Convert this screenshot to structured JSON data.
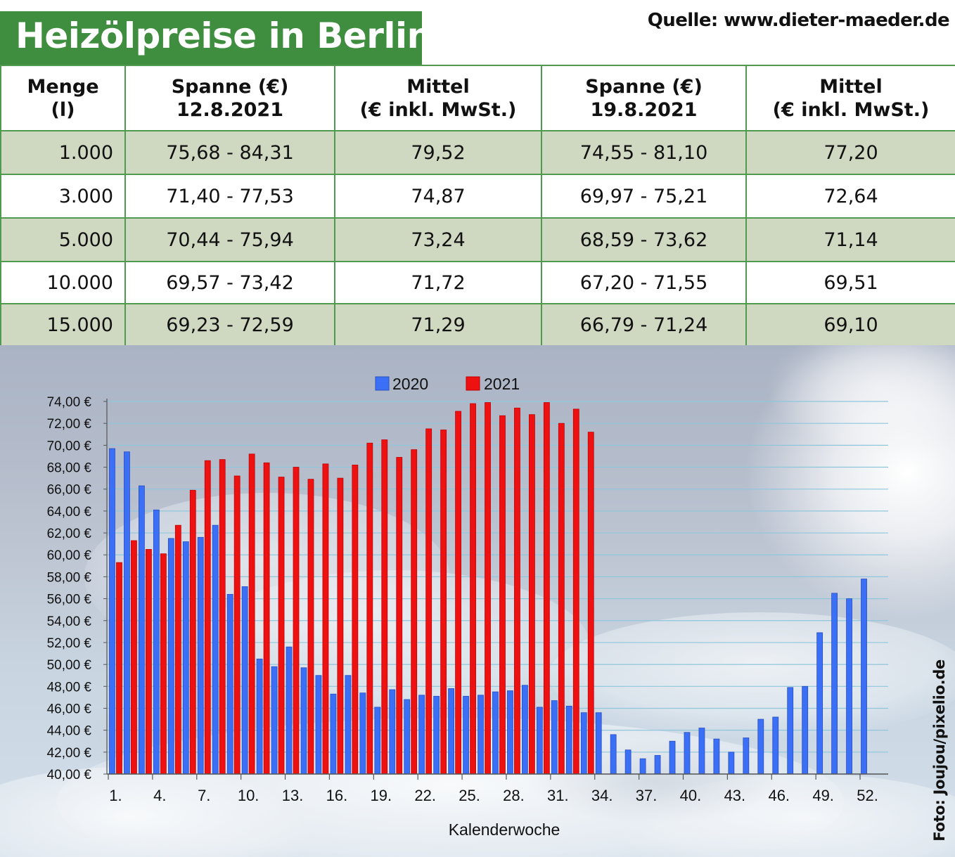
{
  "header": {
    "title": "Heizölpreise in Berlin",
    "source": "Quelle: www.dieter-maeder.de"
  },
  "table": {
    "headers": [
      [
        "Menge",
        "(l)"
      ],
      [
        "Spanne (€)",
        "12.8.2021"
      ],
      [
        "Mittel",
        "(€ inkl. MwSt.)"
      ],
      [
        "Spanne (€)",
        "19.8.2021"
      ],
      [
        "Mittel",
        "(€ inkl. MwSt.)"
      ]
    ],
    "rows": [
      [
        "1.000",
        "75,68 - 84,31",
        "79,52",
        "74,55 - 81,10",
        "77,20"
      ],
      [
        "3.000",
        "71,40 - 77,53",
        "74,87",
        "69,97 - 75,21",
        "72,64"
      ],
      [
        "5.000",
        "70,44 - 75,94",
        "73,24",
        "68,59 - 73,62",
        "71,14"
      ],
      [
        "10.000",
        "69,57 - 73,42",
        "71,72",
        "67,20 - 71,55",
        "69,51"
      ],
      [
        "15.000",
        "69,23 - 72,59",
        "71,29",
        "66,79 - 71,24",
        "69,10"
      ]
    ]
  },
  "photo_credit": "Foto: Joujou/pixelio.de",
  "colors": {
    "title_bg": "#3f8e3f",
    "table_border": "#4f9a4f",
    "row_shade": "#cfd9c1",
    "series_2020": "#3b6ff5",
    "series_2021": "#ee1111"
  },
  "chart_data": {
    "type": "bar",
    "xlabel": "Kalenderwoche",
    "ylabel": "",
    "ylim": [
      40,
      74
    ],
    "y_ticks": [
      "40,00 €",
      "42,00 €",
      "44,00 €",
      "46,00 €",
      "48,00 €",
      "50,00 €",
      "52,00 €",
      "54,00 €",
      "56,00 €",
      "58,00 €",
      "60,00 €",
      "62,00 €",
      "64,00 €",
      "66,00 €",
      "68,00 €",
      "70,00 €",
      "72,00 €",
      "74,00 €"
    ],
    "x_tick_labels": [
      "1.",
      "4.",
      "7.",
      "10.",
      "13.",
      "16.",
      "19.",
      "22.",
      "25.",
      "28.",
      "31.",
      "34.",
      "37.",
      "40.",
      "43.",
      "46.",
      "49.",
      "52."
    ],
    "x_tick_weeks": [
      1,
      4,
      7,
      10,
      13,
      16,
      19,
      22,
      25,
      28,
      31,
      34,
      37,
      40,
      43,
      46,
      49,
      52
    ],
    "weeks": [
      1,
      2,
      3,
      4,
      5,
      6,
      7,
      8,
      9,
      10,
      11,
      12,
      13,
      14,
      15,
      16,
      17,
      18,
      19,
      20,
      21,
      22,
      23,
      24,
      25,
      26,
      27,
      28,
      29,
      30,
      31,
      32,
      33,
      34,
      35,
      36,
      37,
      38,
      39,
      40,
      41,
      42,
      43,
      44,
      45,
      46,
      47,
      48,
      49,
      50,
      51,
      52
    ],
    "grid": true,
    "legend_position": "top-center",
    "series": [
      {
        "name": "2020",
        "values": [
          69.7,
          69.4,
          66.3,
          64.1,
          61.5,
          61.2,
          61.6,
          62.7,
          56.4,
          57.1,
          50.5,
          49.8,
          51.6,
          49.7,
          49.0,
          47.3,
          49.0,
          47.4,
          46.1,
          47.7,
          46.8,
          47.2,
          47.1,
          47.8,
          47.1,
          47.2,
          47.5,
          47.6,
          48.1,
          46.1,
          46.7,
          46.2,
          45.6,
          45.6,
          43.6,
          42.2,
          41.4,
          41.7,
          43.0,
          43.8,
          44.2,
          43.2,
          42.0,
          43.3,
          45.0,
          45.2,
          47.9,
          48.0,
          52.9,
          56.5,
          56.0,
          57.8
        ]
      },
      {
        "name": "2021",
        "values": [
          59.3,
          61.3,
          60.5,
          60.1,
          62.7,
          65.9,
          68.6,
          68.7,
          67.2,
          69.2,
          68.4,
          67.1,
          68.0,
          66.9,
          68.3,
          67.0,
          68.2,
          70.2,
          70.5,
          68.9,
          69.6,
          71.5,
          71.4,
          73.1,
          73.8,
          73.9,
          72.7,
          73.4,
          72.8,
          73.9,
          72.0,
          73.3,
          71.2
        ]
      }
    ]
  }
}
